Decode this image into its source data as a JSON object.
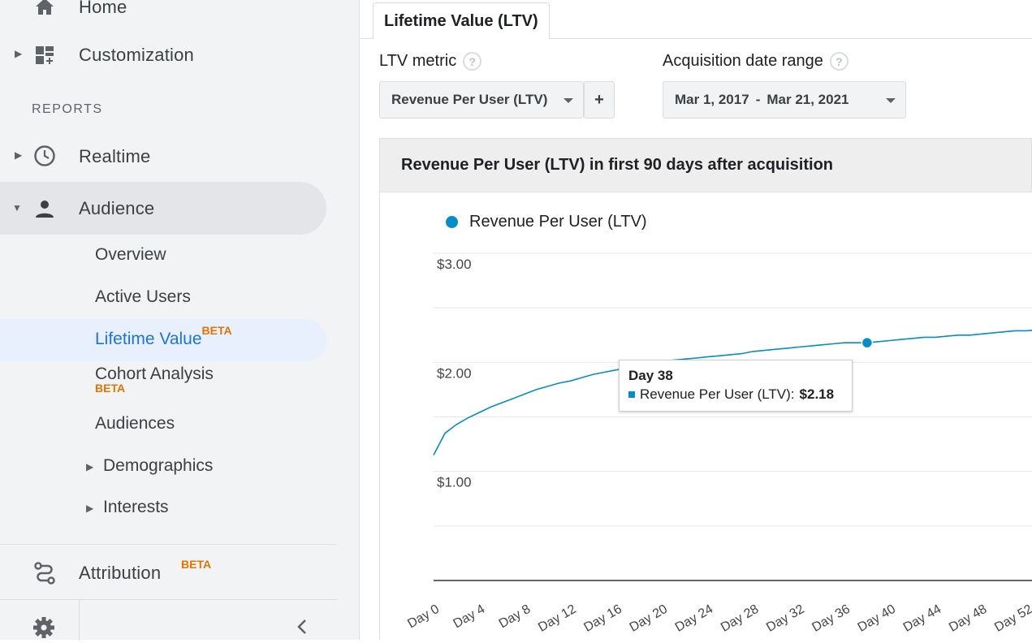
{
  "sidebar": {
    "home_label": "Home",
    "customization_label": "Customization",
    "reports_section": "REPORTS",
    "realtime_label": "Realtime",
    "audience_label": "Audience",
    "audience_items": {
      "overview": "Overview",
      "active_users": "Active Users",
      "lifetime_value": "Lifetime Value",
      "lifetime_value_badge": "BETA",
      "cohort_analysis": "Cohort Analysis",
      "cohort_analysis_badge": "BETA",
      "audiences": "Audiences",
      "demographics": "Demographics",
      "interests": "Interests"
    },
    "attribution_label": "Attribution",
    "attribution_badge": "BETA"
  },
  "main": {
    "tab_label": "Lifetime Value (LTV)",
    "ltv_metric_label": "LTV metric",
    "ltv_metric_value": "Revenue Per User (LTV)",
    "add_button": "+",
    "date_range_label": "Acquisition date range",
    "date_start": "Mar 1, 2017",
    "date_sep": "-",
    "date_end": "Mar 21, 2021",
    "help_glyph": "?",
    "chart_title": "Revenue Per User (LTV) in first 90 days after acquisition",
    "legend_label": "Revenue Per User (LTV)",
    "tooltip": {
      "title": "Day 38",
      "series": "Revenue Per User (LTV):",
      "value": "$2.18"
    }
  },
  "colors": {
    "series": "#058dc7",
    "active_nav": "#1a73e8",
    "beta": "#e37400"
  },
  "chart_data": {
    "type": "line",
    "ylim": [
      0,
      3
    ],
    "yticks": [
      "$3.00",
      "$2.00",
      "$1.00"
    ],
    "x_tick_labels": [
      "Day 0",
      "Day 4",
      "Day 8",
      "Day 12",
      "Day 16",
      "Day 20",
      "Day 24",
      "Day 28",
      "Day 32",
      "Day 36",
      "Day 40",
      "Day 44",
      "Day 48",
      "Day 52"
    ],
    "grid": true,
    "legend_position": "top-left",
    "series": [
      {
        "name": "Revenue Per User (LTV)",
        "x": [
          0,
          1,
          2,
          3,
          4,
          5,
          6,
          7,
          8,
          9,
          10,
          11,
          12,
          13,
          14,
          15,
          16,
          17,
          18,
          19,
          20,
          21,
          22,
          23,
          24,
          25,
          26,
          27,
          28,
          29,
          30,
          31,
          32,
          33,
          34,
          35,
          36,
          37,
          38,
          39,
          40,
          41,
          42,
          43,
          44,
          45,
          46,
          47,
          48,
          49,
          50,
          51,
          52,
          53
        ],
        "values": [
          1.15,
          1.35,
          1.43,
          1.49,
          1.54,
          1.59,
          1.63,
          1.67,
          1.71,
          1.75,
          1.78,
          1.81,
          1.83,
          1.86,
          1.89,
          1.91,
          1.93,
          1.95,
          1.97,
          1.99,
          2.01,
          2.02,
          2.03,
          2.04,
          2.05,
          2.06,
          2.07,
          2.08,
          2.1,
          2.11,
          2.12,
          2.13,
          2.14,
          2.15,
          2.16,
          2.17,
          2.18,
          2.18,
          2.18,
          2.19,
          2.2,
          2.21,
          2.22,
          2.23,
          2.23,
          2.24,
          2.25,
          2.25,
          2.26,
          2.27,
          2.28,
          2.29,
          2.29,
          2.3
        ]
      }
    ],
    "highlight": {
      "x": 38,
      "y": 2.18
    }
  }
}
